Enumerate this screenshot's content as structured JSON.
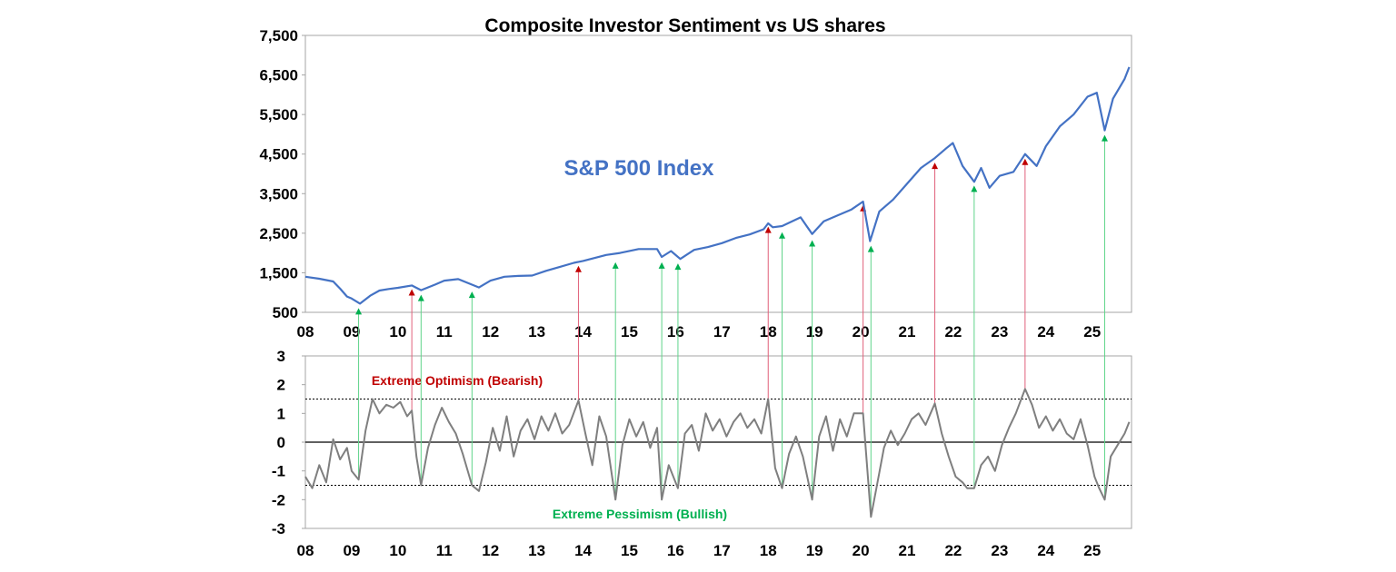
{
  "chart_data": [
    {
      "type": "line",
      "title": "Composite Investor Sentiment vs US shares",
      "series_label": "S&P 500 Index",
      "xlabel": "",
      "ylabel": "",
      "ylim": [
        500,
        7500
      ],
      "yticks": [
        "7,500",
        "6,500",
        "5,500",
        "4,500",
        "3,500",
        "2,500",
        "1,500",
        "500"
      ],
      "ytick_values": [
        7500,
        6500,
        5500,
        4500,
        3500,
        2500,
        1500,
        500
      ],
      "xlim": [
        2008,
        2025.85
      ],
      "xticks": [
        "08",
        "09",
        "10",
        "11",
        "12",
        "13",
        "14",
        "15",
        "16",
        "17",
        "18",
        "19",
        "20",
        "21",
        "22",
        "23",
        "24",
        "25"
      ],
      "xtick_values": [
        2008,
        2009,
        2010,
        2011,
        2012,
        2013,
        2014,
        2015,
        2016,
        2017,
        2018,
        2019,
        2020,
        2021,
        2022,
        2023,
        2024,
        2025
      ],
      "color": "#4472c4",
      "x": [
        2008.0,
        2008.3,
        2008.6,
        2008.75,
        2008.9,
        2009.0,
        2009.18,
        2009.4,
        2009.6,
        2009.8,
        2010.0,
        2010.3,
        2010.5,
        2010.8,
        2011.0,
        2011.3,
        2011.6,
        2011.75,
        2012.0,
        2012.3,
        2012.6,
        2012.9,
        2013.2,
        2013.5,
        2013.8,
        2014.0,
        2014.5,
        2014.8,
        2015.2,
        2015.6,
        2015.7,
        2015.9,
        2016.1,
        2016.4,
        2016.7,
        2017.0,
        2017.3,
        2017.6,
        2017.9,
        2018.0,
        2018.1,
        2018.3,
        2018.7,
        2018.95,
        2019.2,
        2019.5,
        2019.8,
        2020.05,
        2020.2,
        2020.4,
        2020.7,
        2021.0,
        2021.3,
        2021.6,
        2021.85,
        2021.99,
        2022.2,
        2022.45,
        2022.6,
        2022.78,
        2023.0,
        2023.3,
        2023.55,
        2023.8,
        2024.0,
        2024.3,
        2024.6,
        2024.9,
        2025.1,
        2025.27,
        2025.45,
        2025.7,
        2025.8
      ],
      "values": [
        1400,
        1350,
        1280,
        1100,
        900,
        850,
        720,
        920,
        1050,
        1090,
        1120,
        1180,
        1060,
        1200,
        1300,
        1340,
        1200,
        1130,
        1300,
        1400,
        1420,
        1430,
        1550,
        1650,
        1750,
        1800,
        1950,
        2000,
        2100,
        2100,
        1900,
        2050,
        1850,
        2080,
        2150,
        2250,
        2380,
        2470,
        2600,
        2750,
        2650,
        2680,
        2900,
        2480,
        2800,
        2950,
        3100,
        3300,
        2300,
        3050,
        3350,
        3750,
        4150,
        4400,
        4650,
        4780,
        4200,
        3800,
        4150,
        3650,
        3950,
        4050,
        4500,
        4200,
        4700,
        5200,
        5500,
        5950,
        6050,
        5100,
        5900,
        6400,
        6700
      ],
      "signals": [
        {
          "kind": "pessimism",
          "x": 2009.15,
          "y": 720,
          "s": -1.3
        },
        {
          "kind": "optimism",
          "x": 2010.3,
          "y": 1200,
          "s": 1.1
        },
        {
          "kind": "pessimism",
          "x": 2010.5,
          "y": 1060,
          "s": -1.5
        },
        {
          "kind": "pessimism",
          "x": 2011.6,
          "y": 1140,
          "s": -1.5
        },
        {
          "kind": "optimism",
          "x": 2013.9,
          "y": 1790,
          "s": 1.45
        },
        {
          "kind": "pessimism",
          "x": 2014.7,
          "y": 1880,
          "s": -2.0
        },
        {
          "kind": "pessimism",
          "x": 2015.7,
          "y": 1880,
          "s": -2.0
        },
        {
          "kind": "pessimism",
          "x": 2016.05,
          "y": 1850,
          "s": -1.6
        },
        {
          "kind": "optimism",
          "x": 2018.0,
          "y": 2780,
          "s": 1.5
        },
        {
          "kind": "pessimism",
          "x": 2018.3,
          "y": 2640,
          "s": -1.6
        },
        {
          "kind": "pessimism",
          "x": 2018.95,
          "y": 2440,
          "s": -2.0
        },
        {
          "kind": "optimism",
          "x": 2020.05,
          "y": 3330,
          "s": 1.0
        },
        {
          "kind": "pessimism",
          "x": 2020.22,
          "y": 2300,
          "s": -2.6
        },
        {
          "kind": "optimism",
          "x": 2021.6,
          "y": 4400,
          "s": 1.35
        },
        {
          "kind": "pessimism",
          "x": 2022.45,
          "y": 3820,
          "s": -1.6
        },
        {
          "kind": "optimism",
          "x": 2023.55,
          "y": 4500,
          "s": 1.85
        },
        {
          "kind": "pessimism",
          "x": 2025.27,
          "y": 5100,
          "s": -2.0
        }
      ]
    },
    {
      "type": "line",
      "title": "",
      "xlabel": "",
      "ylabel": "",
      "ylim": [
        -3,
        3
      ],
      "yticks": [
        "3",
        "2",
        "1",
        "0",
        "-1",
        "-2",
        "-3"
      ],
      "ytick_values": [
        3,
        2,
        1,
        0,
        -1,
        -2,
        -3
      ],
      "xlim": [
        2008,
        2025.85
      ],
      "xticks": [
        "08",
        "09",
        "10",
        "11",
        "12",
        "13",
        "14",
        "15",
        "16",
        "17",
        "18",
        "19",
        "20",
        "21",
        "22",
        "23",
        "24",
        "25"
      ],
      "xtick_values": [
        2008,
        2009,
        2010,
        2011,
        2012,
        2013,
        2014,
        2015,
        2016,
        2017,
        2018,
        2019,
        2020,
        2021,
        2022,
        2023,
        2024,
        2025
      ],
      "color": "#7f7f7f",
      "thresholds": [
        1.5,
        -1.5
      ],
      "upper_label": "Extreme  Optimism (Bearish)",
      "lower_label": "Extreme  Pessimism (Bullish)",
      "x": [
        2008.0,
        2008.15,
        2008.3,
        2008.45,
        2008.6,
        2008.75,
        2008.9,
        2009.0,
        2009.15,
        2009.3,
        2009.45,
        2009.6,
        2009.75,
        2009.9,
        2010.05,
        2010.2,
        2010.3,
        2010.4,
        2010.5,
        2010.65,
        2010.8,
        2010.95,
        2011.1,
        2011.25,
        2011.4,
        2011.6,
        2011.75,
        2011.9,
        2012.05,
        2012.2,
        2012.35,
        2012.5,
        2012.65,
        2012.8,
        2012.95,
        2013.1,
        2013.25,
        2013.4,
        2013.55,
        2013.7,
        2013.9,
        2014.05,
        2014.2,
        2014.35,
        2014.5,
        2014.7,
        2014.85,
        2015.0,
        2015.15,
        2015.3,
        2015.45,
        2015.6,
        2015.7,
        2015.85,
        2016.05,
        2016.2,
        2016.35,
        2016.5,
        2016.65,
        2016.8,
        2016.95,
        2017.1,
        2017.25,
        2017.4,
        2017.55,
        2017.7,
        2017.85,
        2018.0,
        2018.15,
        2018.3,
        2018.45,
        2018.6,
        2018.75,
        2018.95,
        2019.1,
        2019.25,
        2019.4,
        2019.55,
        2019.7,
        2019.85,
        2020.05,
        2020.22,
        2020.35,
        2020.5,
        2020.65,
        2020.8,
        2020.95,
        2021.1,
        2021.25,
        2021.4,
        2021.6,
        2021.75,
        2021.9,
        2022.05,
        2022.2,
        2022.3,
        2022.45,
        2022.6,
        2022.75,
        2022.9,
        2023.05,
        2023.2,
        2023.35,
        2023.55,
        2023.7,
        2023.85,
        2024.0,
        2024.15,
        2024.3,
        2024.45,
        2024.6,
        2024.75,
        2024.9,
        2025.05,
        2025.15,
        2025.27,
        2025.4,
        2025.55,
        2025.7,
        2025.8
      ],
      "values": [
        -1.2,
        -1.6,
        -0.8,
        -1.4,
        0.1,
        -0.6,
        -0.2,
        -1.0,
        -1.3,
        0.4,
        1.5,
        1.0,
        1.3,
        1.2,
        1.4,
        0.9,
        1.1,
        -0.5,
        -1.5,
        -0.2,
        0.6,
        1.2,
        0.7,
        0.3,
        -0.4,
        -1.5,
        -1.7,
        -0.7,
        0.5,
        -0.3,
        0.9,
        -0.5,
        0.4,
        0.8,
        0.1,
        0.9,
        0.4,
        1.0,
        0.3,
        0.6,
        1.45,
        0.3,
        -0.8,
        0.9,
        0.2,
        -2.0,
        -0.1,
        0.8,
        0.2,
        0.7,
        -0.2,
        0.5,
        -2.0,
        -0.8,
        -1.6,
        0.3,
        0.6,
        -0.3,
        1.0,
        0.4,
        0.8,
        0.2,
        0.7,
        1.0,
        0.5,
        0.8,
        0.3,
        1.5,
        -0.9,
        -1.6,
        -0.4,
        0.2,
        -0.5,
        -2.0,
        0.2,
        0.9,
        -0.3,
        0.8,
        0.2,
        1.0,
        1.0,
        -2.6,
        -1.5,
        -0.2,
        0.4,
        -0.1,
        0.3,
        0.8,
        1.0,
        0.6,
        1.35,
        0.3,
        -0.5,
        -1.2,
        -1.4,
        -1.6,
        -1.6,
        -0.8,
        -0.5,
        -1.0,
        -0.1,
        0.5,
        1.0,
        1.85,
        1.3,
        0.5,
        0.9,
        0.4,
        0.8,
        0.3,
        0.1,
        0.8,
        -0.1,
        -1.2,
        -1.6,
        -2.0,
        -0.5,
        -0.1,
        0.3,
        0.7
      ]
    }
  ]
}
